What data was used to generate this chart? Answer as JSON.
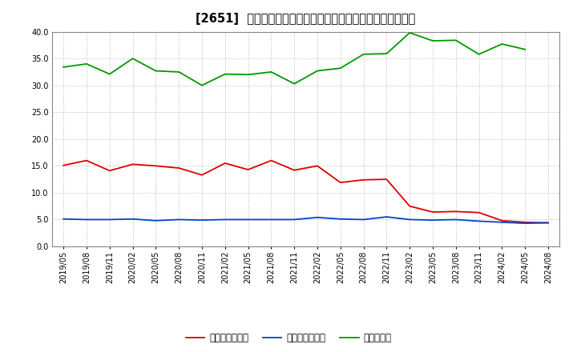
{
  "title": "[2651]  売上債権回転率、買入債務回転率、在庫回転率の推移",
  "x_labels": [
    "2019/05",
    "2019/08",
    "2019/11",
    "2020/02",
    "2020/05",
    "2020/08",
    "2020/11",
    "2021/02",
    "2021/05",
    "2021/08",
    "2021/11",
    "2022/02",
    "2022/05",
    "2022/08",
    "2022/11",
    "2023/02",
    "2023/05",
    "2023/08",
    "2023/11",
    "2024/02",
    "2024/05",
    "2024/08"
  ],
  "売上債権回転率": [
    15.1,
    16.0,
    14.1,
    15.3,
    15.0,
    14.6,
    13.3,
    15.5,
    14.3,
    16.0,
    14.2,
    15.0,
    11.9,
    12.4,
    12.5,
    7.5,
    6.4,
    6.5,
    6.3,
    4.8,
    4.5,
    4.4
  ],
  "買入債務回転率": [
    5.1,
    5.0,
    5.0,
    5.1,
    4.8,
    5.0,
    4.9,
    5.0,
    5.0,
    5.0,
    5.0,
    5.4,
    5.1,
    5.0,
    5.5,
    5.0,
    4.9,
    5.0,
    4.7,
    4.5,
    4.3,
    4.4
  ],
  "在庫回転率": [
    33.4,
    34.0,
    32.1,
    35.0,
    32.7,
    32.5,
    30.0,
    32.1,
    32.0,
    32.5,
    30.3,
    32.7,
    33.2,
    35.8,
    35.9,
    39.8,
    38.3,
    38.4,
    35.8,
    37.7,
    36.7,
    null
  ],
  "line_colors": {
    "売上債権回転率": "#dd0000",
    "買入債務回転率": "#0044cc",
    "在庫回転率": "#009900"
  },
  "legend_labels": [
    "売上債権回転率",
    "買入債務回転率",
    "在庫回転率"
  ],
  "ylim": [
    0.0,
    40.0
  ],
  "yticks": [
    0.0,
    5.0,
    10.0,
    15.0,
    20.0,
    25.0,
    30.0,
    35.0,
    40.0
  ],
  "background_color": "#ffffff",
  "grid_color": "#aaaaaa",
  "title_fontsize": 10.5,
  "tick_fontsize": 7.0,
  "legend_fontsize": 8.5
}
